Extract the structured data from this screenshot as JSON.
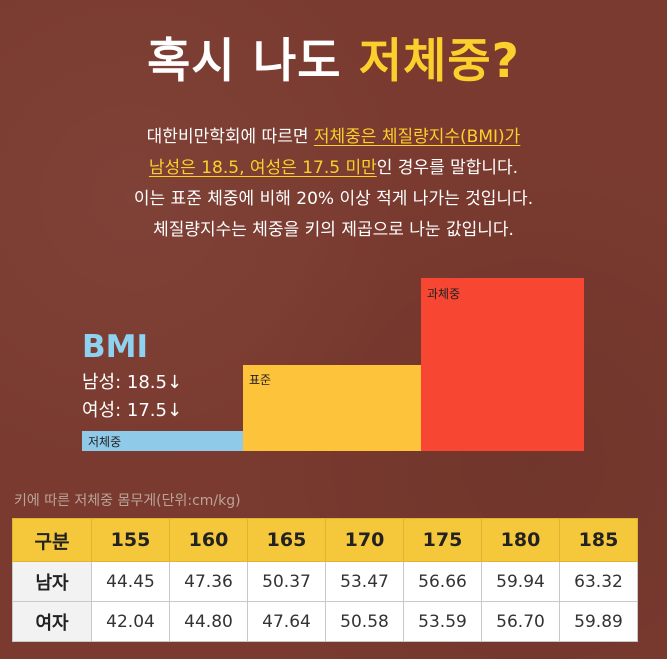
{
  "title": {
    "part1": "혹시 나도",
    "highlight": "저체중?"
  },
  "description": {
    "line1_pre": "대한비만학회에 따르면 ",
    "line1_hl": "저체중은 체질량지수(BMI)가",
    "line2_hl": "남성은 18.5, 여성은 17.5 미만",
    "line2_post": "인 경우를 말합니다.",
    "line3": "이는 표준 체중에 비해 20% 이상 적게 나가는 것입니다.",
    "line4": "체질량지수는 체중을 키의 제곱으로 나눈 값입니다."
  },
  "bmi": {
    "label": "BMI",
    "male": "남성: 18.5↓",
    "female": "여성: 17.5↓"
  },
  "bars": {
    "under": "저체중",
    "normal": "표준",
    "over": "과체중"
  },
  "colors": {
    "background": "#7a3a2f",
    "accent_yellow": "#fcd02c",
    "bmi_blue": "#8ed1f0",
    "under_bar": "#8fcbe9",
    "normal_bar": "#fcc33b",
    "over_bar": "#f74631"
  },
  "table": {
    "caption": "키에 따른 저체중 몸무게(단위:cm/kg)",
    "headers": [
      "구분",
      "155",
      "160",
      "165",
      "170",
      "175",
      "180",
      "185"
    ],
    "rows": [
      [
        "남자",
        "44.45",
        "47.36",
        "50.37",
        "53.47",
        "56.66",
        "59.94",
        "63.32"
      ],
      [
        "여자",
        "42.04",
        "44.80",
        "47.64",
        "50.58",
        "53.59",
        "56.70",
        "59.89"
      ]
    ]
  }
}
